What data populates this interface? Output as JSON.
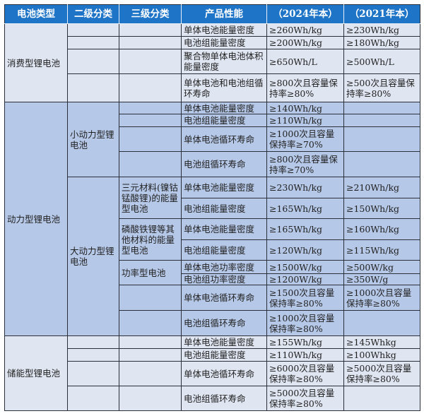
{
  "header": [
    "电池类型",
    "二级分类",
    "三级分类",
    "产品性能",
    "（2024年本）",
    "（2021年本）"
  ],
  "colors": {
    "header_bg": "#1e74c6",
    "consumer_bg": "#dfe5f1",
    "power_bg": "#b6c8e8",
    "storage_bg": "#dfe5f1"
  },
  "sections": [
    {
      "type": "消费型锂电池",
      "rows": [
        {
          "property": "单体电池能量密度",
          "v2024": "≥260Wh/kg",
          "v2021": "≥230Wh/kg"
        },
        {
          "property": "电池组能量密度",
          "v2024": "≥200Wh/kg",
          "v2021": "≥180Wh/kg"
        },
        {
          "property": "聚合物单体电池体积能量密度",
          "v2024": "≥650Wh/L",
          "v2021": "≥500Wh/L"
        },
        {
          "property": "单体电池和电池组循环寿命",
          "v2024": "≥800次且容量保持率≥80%",
          "v2021": "≥500次且容量保持率≥80%"
        }
      ]
    },
    {
      "type": "动力型锂电池",
      "secondary": [
        "小动力型锂电池",
        "大动力型锂电池"
      ],
      "tertiary": [
        "三元材料(镍钴锰酸锂)的能量型电池",
        "磷酸铁锂等其他材料的能量型电池",
        "功率型电池"
      ],
      "rows": [
        {
          "property": "单体电池能量密度",
          "v2024": "≥140Wh/kg",
          "v2021": ""
        },
        {
          "property": "电池组能量密度",
          "v2024": "≥110Wh/kg",
          "v2021": ""
        },
        {
          "property": "单体电池循环寿命",
          "v2024": "≥1000次且容量保持率≥70%",
          "v2021": ""
        },
        {
          "property": "电池组循环寿命",
          "v2024": "≥800次且容量保持率≥70%",
          "v2021": ""
        },
        {
          "property": "单体电池能量密度",
          "v2024": "≥230Wh/kg",
          "v2021": "≥210Wh/kg"
        },
        {
          "property": "电池组能量密度",
          "v2024": "≥165Wh/kg",
          "v2021": "≥150Wh/kg"
        },
        {
          "property": "单体电池能量密度",
          "v2024": "≥165Wh/kg",
          "v2021": "≥160Wh/kg"
        },
        {
          "property": "电池组能量密度",
          "v2024": "≥120Wh/kg",
          "v2021": "≥115Wh/kg"
        },
        {
          "property": "单体电池功率密度",
          "v2024": "≥1500W/kg",
          "v2021": "≥500W/kg"
        },
        {
          "property": "电池组功率密度",
          "v2024": "≥1200W/kg",
          "v2021": "≥350W/g"
        },
        {
          "property": "单体电池循环寿命",
          "v2024": "≥1500次且容量保持率≥80%",
          "v2021": "≥1000次且容量保持率≥80%"
        },
        {
          "property": "电池组循环寿命",
          "v2024": "≥1000次且容量保持率≥80%",
          "v2021": ""
        }
      ]
    },
    {
      "type": "储能型锂电池",
      "rows": [
        {
          "property": "单体电池能量密度",
          "v2024": "≥155Wh/kg",
          "v2021": "≥145Whkg"
        },
        {
          "property": "电池组能量密度",
          "v2024": "≥110Wh/kg",
          "v2021": "≥100Whkg"
        },
        {
          "property": "单体电池循环寿命",
          "v2024": "≥6000次且容量保持率≥80%",
          "v2021": "≥5000次且容量保持率≥80%"
        },
        {
          "property": "电池组循环寿命",
          "v2024": "≥5000次且容量保持率≥80%",
          "v2021": ""
        }
      ]
    }
  ]
}
